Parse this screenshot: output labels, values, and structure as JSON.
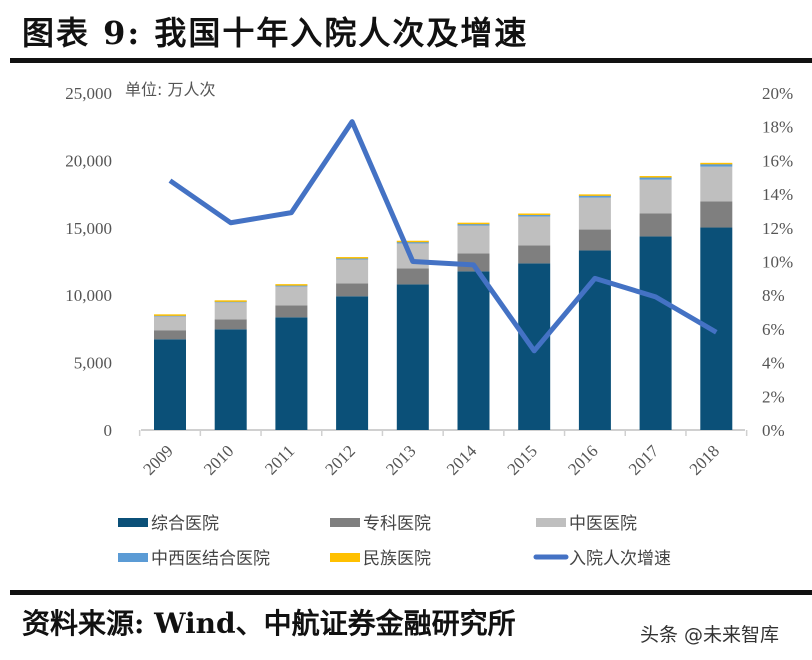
{
  "title": "图表 9: 我国十年入院人次及增速",
  "source": "资料来源: Wind、中航证券金融研究所",
  "watermark": "头条 @未来智库",
  "chart_data": {
    "type": "bar",
    "stacked": true,
    "unit_label": "单位: 万人次",
    "categories": [
      "2009",
      "2010",
      "2011",
      "2012",
      "2013",
      "2014",
      "2015",
      "2016",
      "2017",
      "2018"
    ],
    "series": [
      {
        "name": "综合医院",
        "type": "bar",
        "axis": "left",
        "color": "#0b5078",
        "values": [
          6730,
          7470,
          8360,
          9920,
          10800,
          11770,
          12360,
          13320,
          14360,
          15020
        ]
      },
      {
        "name": "专科医院",
        "type": "bar",
        "axis": "left",
        "color": "#7f7f7f",
        "values": [
          670,
          740,
          890,
          960,
          1190,
          1330,
          1330,
          1550,
          1700,
          1930
        ]
      },
      {
        "name": "中医医院",
        "type": "bar",
        "axis": "left",
        "color": "#bfbfbf",
        "values": [
          1040,
          1260,
          1400,
          1770,
          1850,
          2070,
          2150,
          2370,
          2510,
          2590
        ]
      },
      {
        "name": "中西医结合医院",
        "type": "bar",
        "axis": "left",
        "color": "#5b9bd5",
        "values": [
          100,
          110,
          120,
          130,
          140,
          150,
          160,
          170,
          190,
          200
        ]
      },
      {
        "name": "民族医院",
        "type": "bar",
        "axis": "left",
        "color": "#ffc000",
        "values": [
          40,
          40,
          50,
          50,
          60,
          60,
          60,
          70,
          80,
          80
        ]
      },
      {
        "name": "入院人次增速",
        "type": "line",
        "axis": "right",
        "color": "#4472c4",
        "values": [
          14.8,
          12.3,
          12.9,
          18.3,
          10.0,
          9.8,
          4.7,
          9.0,
          7.9,
          5.8
        ]
      }
    ],
    "ylim_left": [
      0,
      25000
    ],
    "yticks_left": [
      "0",
      "5,000",
      "10,000",
      "15,000",
      "20,000",
      "25,000"
    ],
    "ylim_right": [
      0,
      20
    ],
    "yticks_right": [
      "0%",
      "2%",
      "4%",
      "6%",
      "8%",
      "10%",
      "12%",
      "14%",
      "16%",
      "18%",
      "20%"
    ],
    "grid": false,
    "legend_placement": "bottom"
  }
}
